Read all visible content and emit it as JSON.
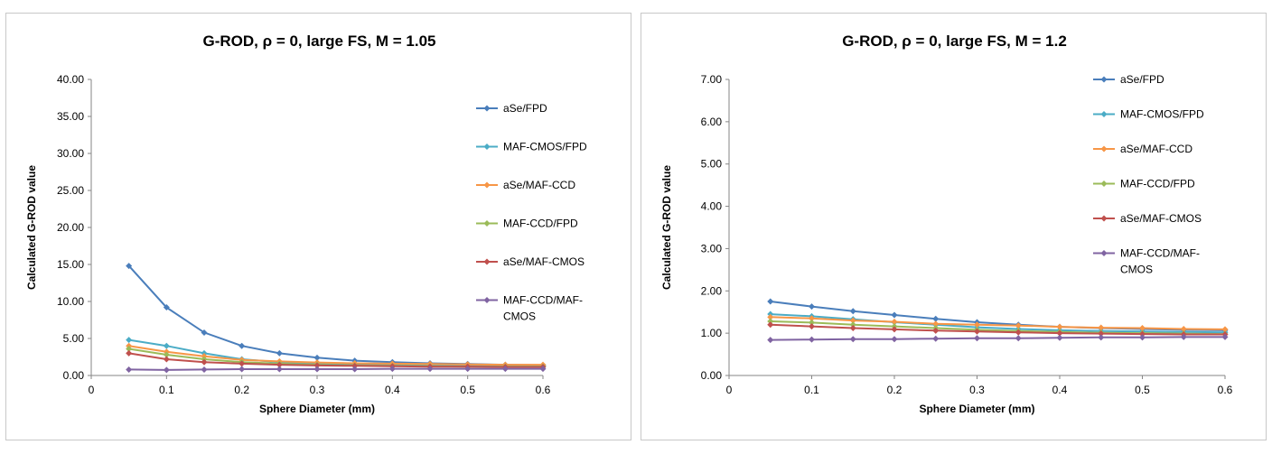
{
  "chart_data": [
    {
      "type": "line",
      "title": "G-ROD, ρ = 0, large FS, M = 1.05",
      "xlabel": "Sphere Diameter (mm)",
      "ylabel": "Calculated G-ROD value",
      "xlim": [
        0,
        0.6
      ],
      "ylim": [
        0,
        40
      ],
      "x_ticks": [
        "0",
        "0.1",
        "0.2",
        "0.3",
        "0.4",
        "0.5",
        "0.6"
      ],
      "y_ticks": [
        "0.00",
        "5.00",
        "10.00",
        "15.00",
        "20.00",
        "25.00",
        "30.00",
        "35.00",
        "40.00"
      ],
      "grid": false,
      "legend_position": "right",
      "x": [
        0.05,
        0.1,
        0.15,
        0.2,
        0.25,
        0.3,
        0.35,
        0.4,
        0.45,
        0.5,
        0.55,
        0.6
      ],
      "series": [
        {
          "name": "aSe/FPD",
          "color": "#4a7ebb",
          "values": [
            14.8,
            9.2,
            5.8,
            4.0,
            3.0,
            2.4,
            2.0,
            1.8,
            1.65,
            1.55,
            1.45,
            1.4
          ]
        },
        {
          "name": "MAF-CMOS/FPD",
          "color": "#4bacc6",
          "values": [
            4.8,
            4.0,
            3.0,
            2.2,
            1.8,
            1.6,
            1.5,
            1.45,
            1.4,
            1.35,
            1.3,
            1.3
          ]
        },
        {
          "name": "aSe/MAF-CCD",
          "color": "#f79646",
          "values": [
            4.0,
            3.2,
            2.6,
            2.1,
            1.9,
            1.75,
            1.65,
            1.6,
            1.55,
            1.5,
            1.45,
            1.45
          ]
        },
        {
          "name": "MAF-CCD/FPD",
          "color": "#9bbb59",
          "values": [
            3.6,
            2.8,
            2.2,
            1.8,
            1.6,
            1.45,
            1.35,
            1.3,
            1.25,
            1.2,
            1.2,
            1.2
          ]
        },
        {
          "name": "aSe/MAF-CMOS",
          "color": "#c0504d",
          "values": [
            3.0,
            2.2,
            1.8,
            1.6,
            1.45,
            1.35,
            1.3,
            1.25,
            1.2,
            1.2,
            1.15,
            1.15
          ]
        },
        {
          "name": "MAF-CCD/MAF-CMOS",
          "color": "#8064a2",
          "values": [
            0.8,
            0.75,
            0.8,
            0.85,
            0.85,
            0.85,
            0.85,
            0.9,
            0.9,
            0.9,
            0.9,
            0.9
          ]
        }
      ]
    },
    {
      "type": "line",
      "title": "G-ROD, ρ = 0, large FS, M = 1.2",
      "xlabel": "Sphere Diameter (mm)",
      "ylabel": "Calculated G-ROD value",
      "xlim": [
        0,
        0.6
      ],
      "ylim": [
        0,
        7
      ],
      "x_ticks": [
        "0",
        "0.1",
        "0.2",
        "0.3",
        "0.4",
        "0.5",
        "0.6"
      ],
      "y_ticks": [
        "0.00",
        "1.00",
        "2.00",
        "3.00",
        "4.00",
        "5.00",
        "6.00",
        "7.00"
      ],
      "grid": false,
      "legend_position": "right",
      "x": [
        0.05,
        0.1,
        0.15,
        0.2,
        0.25,
        0.3,
        0.35,
        0.4,
        0.45,
        0.5,
        0.55,
        0.6
      ],
      "series": [
        {
          "name": "aSe/FPD",
          "color": "#4a7ebb",
          "values": [
            1.75,
            1.63,
            1.52,
            1.43,
            1.34,
            1.26,
            1.2,
            1.15,
            1.12,
            1.1,
            1.08,
            1.07
          ]
        },
        {
          "name": "MAF-CMOS/FPD",
          "color": "#4bacc6",
          "values": [
            1.45,
            1.4,
            1.33,
            1.26,
            1.2,
            1.14,
            1.1,
            1.07,
            1.05,
            1.04,
            1.03,
            1.02
          ]
        },
        {
          "name": "aSe/MAF-CCD",
          "color": "#f79646",
          "values": [
            1.38,
            1.35,
            1.3,
            1.27,
            1.22,
            1.2,
            1.18,
            1.15,
            1.13,
            1.12,
            1.1,
            1.09
          ]
        },
        {
          "name": "MAF-CCD/FPD",
          "color": "#9bbb59",
          "values": [
            1.28,
            1.25,
            1.2,
            1.16,
            1.12,
            1.08,
            1.05,
            1.03,
            1.01,
            1.0,
            0.99,
            0.98
          ]
        },
        {
          "name": "aSe/MAF-CMOS",
          "color": "#c0504d",
          "values": [
            1.2,
            1.16,
            1.12,
            1.09,
            1.06,
            1.04,
            1.02,
            1.0,
            0.99,
            0.98,
            0.97,
            0.97
          ]
        },
        {
          "name": "MAF-CCD/MAF-CMOS",
          "color": "#8064a2",
          "values": [
            0.84,
            0.85,
            0.86,
            0.86,
            0.87,
            0.88,
            0.88,
            0.89,
            0.9,
            0.9,
            0.91,
            0.91
          ]
        }
      ]
    }
  ]
}
